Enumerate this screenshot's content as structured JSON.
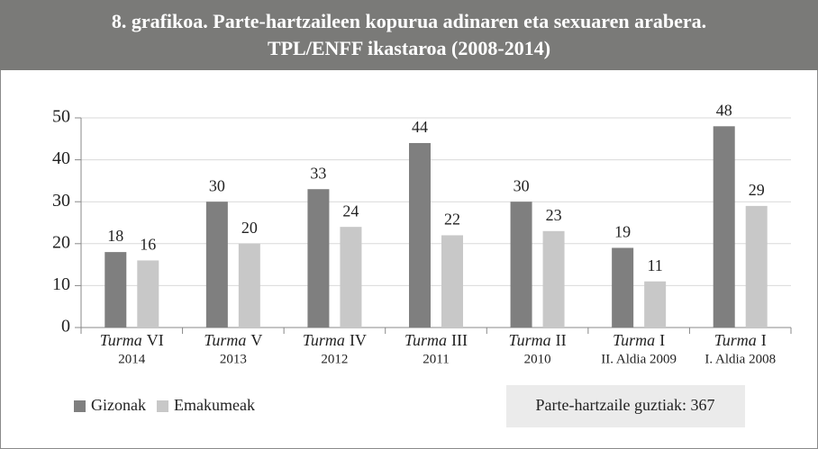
{
  "chart_data": {
    "type": "bar",
    "title": [
      "8. grafikoa. Parte-hartzaileen kopurua adinaren eta sexuaren arabera.",
      "TPL/ENFF ikastaroa (2008-2014)"
    ],
    "categories": [
      {
        "italic": "Turma",
        "label": "VI",
        "sub": "2014"
      },
      {
        "italic": "Turma",
        "label": "V",
        "sub": "2013"
      },
      {
        "italic": "Turma",
        "label": "IV",
        "sub": "2012"
      },
      {
        "italic": "Turma",
        "label": "III",
        "sub": "2011"
      },
      {
        "italic": "Turma",
        "label": "II",
        "sub": "2010"
      },
      {
        "italic": "Turma",
        "label": "I",
        "sub": "II. Aldia 2009"
      },
      {
        "italic": "Turma",
        "label": "I",
        "sub": "I. Aldia 2008"
      }
    ],
    "series": [
      {
        "name": "Gizonak",
        "color": "#7f7f7f",
        "values": [
          18,
          30,
          33,
          44,
          30,
          19,
          48
        ]
      },
      {
        "name": "Emakumeak",
        "color": "#c8c8c8",
        "values": [
          16,
          20,
          24,
          22,
          23,
          11,
          29
        ]
      }
    ],
    "ylim": [
      0,
      50
    ],
    "yticks": [
      0,
      10,
      20,
      30,
      40,
      50
    ],
    "grid": true,
    "legend": "bottom-left",
    "annotation": "Parte-hartzaile guztiak: 367"
  }
}
